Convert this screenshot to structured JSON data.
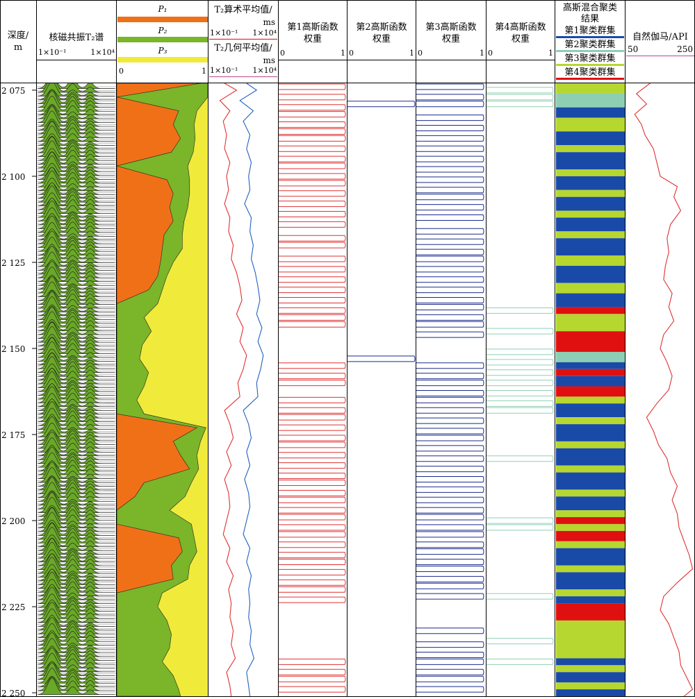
{
  "columns": {
    "depth": {
      "title_line1": "深度/",
      "title_line2": "m"
    },
    "t2_spectrum": {
      "title": "核磁共振T₂谱",
      "scale_min": "1×10⁻¹",
      "scale_max": "1×10⁴"
    },
    "porosity": {
      "p1": "P₁",
      "p2": "P₂",
      "p3": "P₃",
      "scale_min": "0",
      "scale_max": "1"
    },
    "t2_means": {
      "arith_title": "T₂算术平均值/",
      "arith_unit": "ms",
      "arith_min": "1×10⁻¹",
      "arith_max": "1×10⁴",
      "geo_title": "T₂几何平均值/",
      "geo_unit": "ms",
      "geo_min": "1×10⁻¹",
      "geo_max": "1×10⁴"
    },
    "g1": {
      "title_line1": "第1高斯函数",
      "title_line2": "权重",
      "scale_min": "0",
      "scale_max": "1"
    },
    "g2": {
      "title_line1": "第2高斯函数",
      "title_line2": "权重",
      "scale_min": "0",
      "scale_max": "1"
    },
    "g3": {
      "title_line1": "第3高斯函数",
      "title_line2": "权重",
      "scale_min": "0",
      "scale_max": "1"
    },
    "g4": {
      "title_line1": "第4高斯函数",
      "title_line2": "权重",
      "scale_min": "0",
      "scale_max": "1"
    },
    "cluster": {
      "title_line1": "高斯混合聚类",
      "title_line2": "结果",
      "c1": "第1聚类群集",
      "c2": "第2聚类群集",
      "c3": "第3聚类群集",
      "c4": "第4聚类群集"
    },
    "gamma": {
      "title": "自然伽马/API",
      "scale_min": "50",
      "scale_max": "250"
    }
  },
  "colors": {
    "p1": "#f07018",
    "p2": "#7ab52a",
    "p3": "#f0ea3a",
    "g1": "#e03030",
    "g2": "#1a2a8c",
    "g3": "#1a2a8c",
    "g4": "#8ecfb4",
    "cluster1": "#1a4aa8",
    "cluster2": "#8ecfb4",
    "cluster3": "#b6d630",
    "cluster4": "#e01010",
    "gamma": "#e03030",
    "t2_arith": "#e03030",
    "t2_geo": "#2060c0",
    "spectrum_fill": "#6aa828"
  },
  "chart_data": {
    "type": "well-log",
    "depth_ticks": [
      "2 075",
      "2 100",
      "2 125",
      "2 150",
      "2 175",
      "2 200",
      "2 225",
      "2 250"
    ],
    "depth_tick_values": [
      2075,
      2100,
      2125,
      2150,
      2175,
      2200,
      2225,
      2250
    ],
    "depth_range": [
      2073,
      2251
    ],
    "porosity_fraction": {
      "depth": [
        2073,
        2077,
        2081,
        2085,
        2089,
        2093,
        2097,
        2101,
        2105,
        2109,
        2113,
        2117,
        2121,
        2125,
        2129,
        2133,
        2137,
        2141,
        2145,
        2149,
        2153,
        2157,
        2161,
        2165,
        2169,
        2173,
        2177,
        2181,
        2185,
        2189,
        2193,
        2197,
        2201,
        2205,
        2209,
        2213,
        2217,
        2221,
        2225,
        2229,
        2233,
        2237,
        2241,
        2245,
        2249,
        2251
      ],
      "p1": [
        0.92,
        0.0,
        0.68,
        0.62,
        0.7,
        0.6,
        0.0,
        0.55,
        0.62,
        0.58,
        0.62,
        0.52,
        0.5,
        0.48,
        0.45,
        0.35,
        0.0,
        0.0,
        0.0,
        0.0,
        0.0,
        0.0,
        0.0,
        0.0,
        0.0,
        0.88,
        0.62,
        0.7,
        0.8,
        0.3,
        0.2,
        0.0,
        0.0,
        0.68,
        0.72,
        0.6,
        0.62,
        0.0,
        0.0,
        0.0,
        0.0,
        0.0,
        0.0,
        0.0,
        0.0,
        0.0
      ],
      "p1p2": [
        1.0,
        1.0,
        0.88,
        0.85,
        0.86,
        0.84,
        0.78,
        0.8,
        0.8,
        0.78,
        0.74,
        0.72,
        0.72,
        0.62,
        0.55,
        0.5,
        0.45,
        0.3,
        0.38,
        0.28,
        0.25,
        0.35,
        0.3,
        0.22,
        0.3,
        0.98,
        0.92,
        0.88,
        0.9,
        0.82,
        0.75,
        0.58,
        0.82,
        0.85,
        0.88,
        0.8,
        0.78,
        0.5,
        0.45,
        0.55,
        0.6,
        0.58,
        0.5,
        0.62,
        0.68,
        0.7
      ]
    },
    "t2_arith_position": {
      "depth": [
        2073,
        2075,
        2078,
        2081,
        2084,
        2088,
        2092,
        2096,
        2100,
        2104,
        2108,
        2112,
        2116,
        2120,
        2124,
        2128,
        2132,
        2136,
        2140,
        2144,
        2148,
        2152,
        2156,
        2160,
        2164,
        2168,
        2172,
        2176,
        2180,
        2184,
        2188,
        2192,
        2196,
        2200,
        2204,
        2208,
        2212,
        2216,
        2220,
        2224,
        2228,
        2232,
        2236,
        2240,
        2244,
        2248,
        2251
      ],
      "values": [
        0.22,
        0.4,
        0.15,
        0.3,
        0.2,
        0.25,
        0.22,
        0.3,
        0.25,
        0.28,
        0.22,
        0.3,
        0.28,
        0.35,
        0.32,
        0.4,
        0.45,
        0.48,
        0.4,
        0.5,
        0.45,
        0.55,
        0.5,
        0.42,
        0.45,
        0.22,
        0.3,
        0.35,
        0.25,
        0.32,
        0.22,
        0.28,
        0.3,
        0.25,
        0.2,
        0.3,
        0.25,
        0.35,
        0.28,
        0.32,
        0.3,
        0.35,
        0.32,
        0.38,
        0.25,
        0.3,
        0.32
      ]
    },
    "t2_geo_position": {
      "depth": [
        2073,
        2075,
        2078,
        2081,
        2084,
        2088,
        2092,
        2096,
        2100,
        2104,
        2108,
        2112,
        2116,
        2120,
        2124,
        2128,
        2132,
        2136,
        2140,
        2144,
        2148,
        2152,
        2156,
        2160,
        2164,
        2168,
        2172,
        2176,
        2180,
        2184,
        2188,
        2192,
        2196,
        2200,
        2204,
        2208,
        2212,
        2216,
        2220,
        2224,
        2228,
        2232,
        2236,
        2240,
        2244,
        2248,
        2251
      ],
      "values": [
        0.55,
        0.7,
        0.45,
        0.65,
        0.5,
        0.6,
        0.55,
        0.62,
        0.58,
        0.6,
        0.52,
        0.62,
        0.6,
        0.65,
        0.62,
        0.68,
        0.72,
        0.75,
        0.7,
        0.78,
        0.72,
        0.8,
        0.76,
        0.7,
        0.72,
        0.5,
        0.58,
        0.62,
        0.55,
        0.6,
        0.52,
        0.58,
        0.6,
        0.55,
        0.5,
        0.6,
        0.55,
        0.62,
        0.58,
        0.6,
        0.58,
        0.62,
        0.6,
        0.66,
        0.55,
        0.58,
        0.6
      ]
    },
    "gamma_api": {
      "depth": [
        2073,
        2076,
        2079,
        2082,
        2085,
        2088,
        2092,
        2096,
        2100,
        2103,
        2106,
        2110,
        2114,
        2118,
        2122,
        2126,
        2130,
        2134,
        2138,
        2142,
        2146,
        2150,
        2154,
        2158,
        2162,
        2166,
        2170,
        2174,
        2178,
        2182,
        2186,
        2190,
        2194,
        2198,
        2202,
        2206,
        2210,
        2214,
        2218,
        2222,
        2226,
        2230,
        2234,
        2238,
        2242,
        2246,
        2249,
        2251
      ],
      "values": [
        120,
        80,
        110,
        75,
        95,
        105,
        130,
        140,
        150,
        200,
        190,
        210,
        180,
        170,
        175,
        165,
        160,
        185,
        175,
        190,
        160,
        150,
        170,
        185,
        175,
        140,
        110,
        130,
        145,
        170,
        180,
        200,
        185,
        200,
        205,
        220,
        235,
        245,
        200,
        160,
        150,
        175,
        190,
        205,
        210,
        230,
        245,
        220
      ]
    },
    "cluster_intervals": [
      {
        "top": 2073,
        "bottom": 2076,
        "cluster": 3
      },
      {
        "top": 2076,
        "bottom": 2080,
        "cluster": 2
      },
      {
        "top": 2080,
        "bottom": 2083,
        "cluster": 1
      },
      {
        "top": 2083,
        "bottom": 2087,
        "cluster": 3
      },
      {
        "top": 2087,
        "bottom": 2091,
        "cluster": 1
      },
      {
        "top": 2091,
        "bottom": 2093,
        "cluster": 3
      },
      {
        "top": 2093,
        "bottom": 2098,
        "cluster": 1
      },
      {
        "top": 2098,
        "bottom": 2100,
        "cluster": 3
      },
      {
        "top": 2100,
        "bottom": 2104,
        "cluster": 1
      },
      {
        "top": 2104,
        "bottom": 2106,
        "cluster": 3
      },
      {
        "top": 2106,
        "bottom": 2110,
        "cluster": 1
      },
      {
        "top": 2110,
        "bottom": 2112,
        "cluster": 3
      },
      {
        "top": 2112,
        "bottom": 2116,
        "cluster": 1
      },
      {
        "top": 2116,
        "bottom": 2118,
        "cluster": 3
      },
      {
        "top": 2118,
        "bottom": 2123,
        "cluster": 1
      },
      {
        "top": 2123,
        "bottom": 2126,
        "cluster": 3
      },
      {
        "top": 2126,
        "bottom": 2131,
        "cluster": 1
      },
      {
        "top": 2131,
        "bottom": 2134,
        "cluster": 3
      },
      {
        "top": 2134,
        "bottom": 2138,
        "cluster": 1
      },
      {
        "top": 2138,
        "bottom": 2140,
        "cluster": 4
      },
      {
        "top": 2140,
        "bottom": 2145,
        "cluster": 3
      },
      {
        "top": 2145,
        "bottom": 2151,
        "cluster": 4
      },
      {
        "top": 2151,
        "bottom": 2154,
        "cluster": 2
      },
      {
        "top": 2154,
        "bottom": 2156,
        "cluster": 1
      },
      {
        "top": 2156,
        "bottom": 2158,
        "cluster": 4
      },
      {
        "top": 2158,
        "bottom": 2161,
        "cluster": 1
      },
      {
        "top": 2161,
        "bottom": 2164,
        "cluster": 4
      },
      {
        "top": 2164,
        "bottom": 2166,
        "cluster": 3
      },
      {
        "top": 2166,
        "bottom": 2170,
        "cluster": 1
      },
      {
        "top": 2170,
        "bottom": 2172,
        "cluster": 3
      },
      {
        "top": 2172,
        "bottom": 2177,
        "cluster": 1
      },
      {
        "top": 2177,
        "bottom": 2179,
        "cluster": 3
      },
      {
        "top": 2179,
        "bottom": 2184,
        "cluster": 1
      },
      {
        "top": 2184,
        "bottom": 2186,
        "cluster": 3
      },
      {
        "top": 2186,
        "bottom": 2191,
        "cluster": 1
      },
      {
        "top": 2191,
        "bottom": 2193,
        "cluster": 3
      },
      {
        "top": 2193,
        "bottom": 2197,
        "cluster": 1
      },
      {
        "top": 2197,
        "bottom": 2199,
        "cluster": 3
      },
      {
        "top": 2199,
        "bottom": 2201,
        "cluster": 4
      },
      {
        "top": 2201,
        "bottom": 2203,
        "cluster": 3
      },
      {
        "top": 2203,
        "bottom": 2206,
        "cluster": 4
      },
      {
        "top": 2206,
        "bottom": 2208,
        "cluster": 3
      },
      {
        "top": 2208,
        "bottom": 2213,
        "cluster": 1
      },
      {
        "top": 2213,
        "bottom": 2215,
        "cluster": 3
      },
      {
        "top": 2215,
        "bottom": 2220,
        "cluster": 1
      },
      {
        "top": 2220,
        "bottom": 2222,
        "cluster": 3
      },
      {
        "top": 2222,
        "bottom": 2224,
        "cluster": 1
      },
      {
        "top": 2224,
        "bottom": 2229,
        "cluster": 4
      },
      {
        "top": 2229,
        "bottom": 2240,
        "cluster": 3
      },
      {
        "top": 2240,
        "bottom": 2242,
        "cluster": 1
      },
      {
        "top": 2242,
        "bottom": 2244,
        "cluster": 3
      },
      {
        "top": 2244,
        "bottom": 2247,
        "cluster": 1
      },
      {
        "top": 2247,
        "bottom": 2249,
        "cluster": 3
      },
      {
        "top": 2249,
        "bottom": 2251,
        "cluster": 1
      }
    ],
    "g1_spikes": [
      2074,
      2077,
      2080,
      2082,
      2085,
      2087,
      2089,
      2092,
      2095,
      2097,
      2100,
      2102,
      2105,
      2108,
      2111,
      2114,
      2118,
      2120,
      2124,
      2127,
      2130,
      2133,
      2136,
      2139,
      2141,
      2143,
      2155,
      2158,
      2160,
      2165,
      2168,
      2170,
      2173,
      2176,
      2178,
      2181,
      2184,
      2187,
      2189,
      2192,
      2194,
      2197,
      2199,
      2202,
      2204,
      2207,
      2210,
      2212,
      2215,
      2218,
      2220,
      2223,
      2241,
      2244,
      2246,
      2249
    ],
    "g2_spikes": [
      2079,
      2153
    ],
    "g3_spikes": [
      2074,
      2077,
      2079,
      2083,
      2086,
      2089,
      2092,
      2095,
      2098,
      2101,
      2104,
      2106,
      2109,
      2112,
      2116,
      2119,
      2122,
      2124,
      2127,
      2130,
      2133,
      2136,
      2138,
      2141,
      2143,
      2146,
      2155,
      2158,
      2160,
      2163,
      2165,
      2168,
      2171,
      2174,
      2176,
      2179,
      2182,
      2185,
      2188,
      2191,
      2194,
      2197,
      2199,
      2202,
      2204,
      2207,
      2209,
      2212,
      2214,
      2217,
      2219,
      2222,
      2232,
      2236,
      2239,
      2241,
      2244,
      2246,
      2249
    ],
    "g4_spikes": [
      2075,
      2077,
      2079,
      2139,
      2145,
      2151,
      2154,
      2157,
      2160,
      2163,
      2166,
      2168,
      2182,
      2200,
      2202,
      2222,
      2235,
      2241
    ]
  }
}
